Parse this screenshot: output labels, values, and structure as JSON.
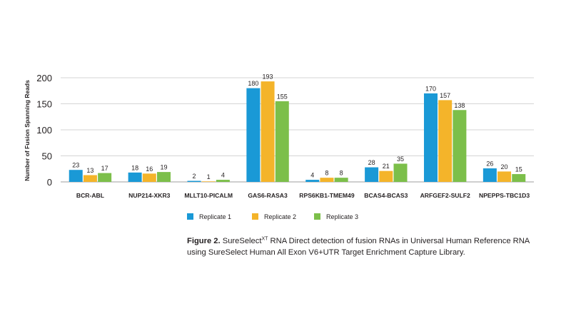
{
  "chart_data": {
    "type": "bar",
    "title": "",
    "xlabel": "",
    "ylabel": "Number of Fusion Spanning Reads",
    "ylim": [
      0,
      200
    ],
    "yticks": [
      "0",
      "50",
      "100",
      "150",
      "200"
    ],
    "grid": true,
    "legend_position": "bottom",
    "categories": [
      "BCR-ABL",
      "NUP214-XKR3",
      "MLLT10-PICALM",
      "GAS6-RASA3",
      "RPS6KB1-TMEM49",
      "BCAS4-BCAS3",
      "ARFGEF2-SULF2",
      "NPEPPS-TBC1D3"
    ],
    "series": [
      {
        "name": "Replicate 1",
        "color": "#1a99d6",
        "values": [
          23,
          18,
          2,
          180,
          4,
          28,
          170,
          26
        ]
      },
      {
        "name": "Replicate 2",
        "color": "#f4b42a",
        "values": [
          13,
          16,
          1,
          193,
          8,
          21,
          157,
          20
        ]
      },
      {
        "name": "Replicate 3",
        "color": "#7cbf4a",
        "values": [
          17,
          19,
          4,
          155,
          8,
          35,
          138,
          15
        ]
      }
    ]
  },
  "caption": {
    "figure_label": "Figure 2.",
    "name_start": " SureSelect",
    "superscript": "XT",
    "text": " RNA Direct detection of fusion RNAs in Universal Human Reference RNA using SureSelect Human All Exon V6+UTR Target Enrichment Capture Library."
  }
}
